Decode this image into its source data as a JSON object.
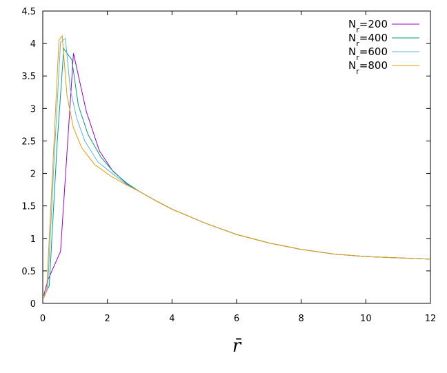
{
  "chart_data": {
    "type": "line",
    "xlabel": "r̄",
    "xlim": [
      0,
      12
    ],
    "ylim": [
      0,
      4.5
    ],
    "xticks": [
      0,
      2,
      4,
      6,
      8,
      10,
      12
    ],
    "yticks": [
      0,
      0.5,
      1,
      1.5,
      2,
      2.5,
      3,
      3.5,
      4,
      4.5
    ],
    "grid": false,
    "legend": "top-right",
    "series": [
      {
        "name": "Nr=200",
        "color": "#9400d3",
        "x": [
          0.03,
          0.15,
          0.55,
          0.95,
          1.35,
          1.75,
          2.15,
          2.6,
          3,
          3.5,
          4,
          5,
          6,
          7,
          8,
          9,
          10,
          11,
          12
        ],
        "values": [
          0.12,
          0.35,
          0.8,
          3.85,
          2.95,
          2.35,
          2.05,
          1.84,
          1.72,
          1.58,
          1.45,
          1.24,
          1.06,
          0.93,
          0.83,
          0.76,
          0.72,
          0.7,
          0.68
        ]
      },
      {
        "name": "Nr=400",
        "color": "#009e73",
        "x": [
          0.05,
          0.2,
          0.45,
          0.65,
          0.9,
          1.1,
          1.4,
          1.8,
          2.2,
          2.6,
          3,
          3.5,
          4,
          5,
          6,
          7,
          8,
          9,
          10,
          11,
          12
        ],
        "values": [
          0.12,
          0.27,
          2.5,
          3.92,
          3.75,
          3.05,
          2.6,
          2.25,
          2.02,
          1.85,
          1.72,
          1.58,
          1.45,
          1.24,
          1.06,
          0.93,
          0.83,
          0.76,
          0.72,
          0.7,
          0.68
        ]
      },
      {
        "name": "Nr=600",
        "color": "#56b4e9",
        "x": [
          0.03,
          0.15,
          0.35,
          0.55,
          0.7,
          0.85,
          1.05,
          1.3,
          1.7,
          2.2,
          2.6,
          3,
          3.5,
          4,
          5,
          6,
          7,
          8,
          9,
          10,
          11,
          12
        ],
        "values": [
          0.08,
          0.22,
          2.2,
          4.02,
          4.08,
          3.3,
          2.85,
          2.5,
          2.18,
          1.98,
          1.83,
          1.72,
          1.58,
          1.45,
          1.24,
          1.06,
          0.93,
          0.83,
          0.76,
          0.72,
          0.7,
          0.68
        ]
      },
      {
        "name": "Nr=800",
        "color": "#e69f00",
        "x": [
          0.03,
          0.12,
          0.3,
          0.5,
          0.6,
          0.75,
          0.95,
          1.2,
          1.6,
          2.1,
          2.6,
          3,
          3.5,
          4,
          5,
          6,
          7,
          8,
          9,
          10,
          11,
          12
        ],
        "values": [
          0.08,
          0.2,
          2.0,
          4.05,
          4.12,
          3.2,
          2.7,
          2.4,
          2.14,
          1.96,
          1.82,
          1.72,
          1.58,
          1.45,
          1.24,
          1.06,
          0.93,
          0.83,
          0.76,
          0.72,
          0.7,
          0.68
        ]
      }
    ]
  }
}
